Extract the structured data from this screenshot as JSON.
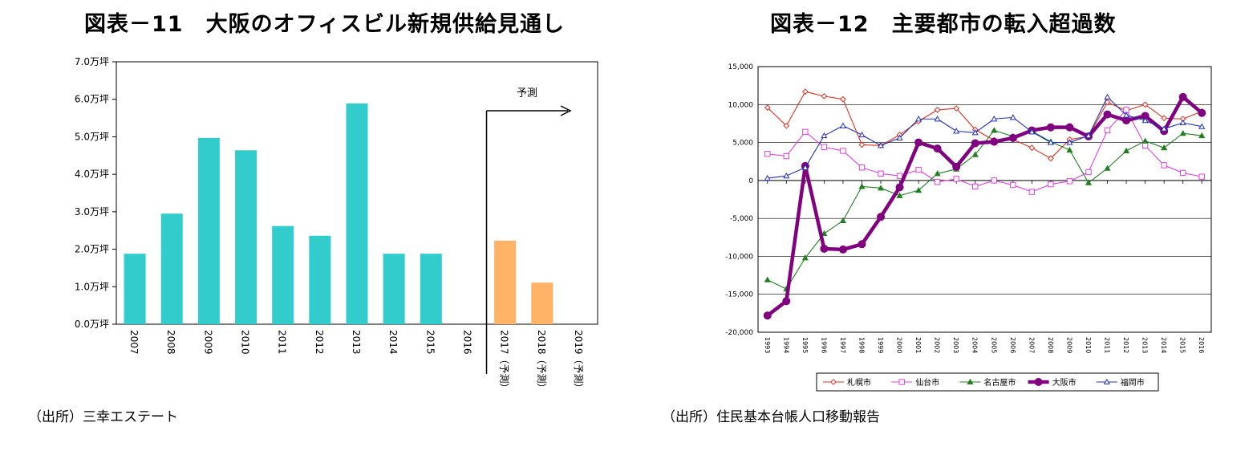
{
  "titles": {
    "left": "図表－11　大阪のオフィスビル新規供給見通し",
    "right": "図表－12　主要都市の転入超過数"
  },
  "sources": {
    "left": "（出所）三幸エステート",
    "right": "（出所）住民基本台帳人口移動報告"
  },
  "colors": {
    "bar_actual": "#33CCCC",
    "bar_forecast": "#FFB366",
    "sapporo": "#E03020",
    "sendai": "#E040E0",
    "nagoya": "#208020",
    "osaka": "#800080",
    "fukuoka": "#2030C0"
  },
  "chart_data": [
    {
      "type": "bar",
      "title": "図表－11　大阪のオフィスビル新規供給見通し",
      "categories": [
        "2007",
        "2008",
        "2009",
        "2010",
        "2011",
        "2012",
        "2013",
        "2014",
        "2015",
        "2016",
        "2017（予測）",
        "2018（予測）",
        "2019（予測）"
      ],
      "values": [
        1.88,
        2.95,
        4.97,
        4.64,
        2.62,
        2.36,
        5.89,
        1.88,
        1.88,
        0,
        2.23,
        1.11,
        0
      ],
      "forecast_from_index": 10,
      "y_tick_labels": [
        "0.0万坪",
        "1.0万坪",
        "2.0万坪",
        "3.0万坪",
        "4.0万坪",
        "5.0万坪",
        "6.0万坪",
        "7.0万坪"
      ],
      "ylim": [
        0,
        7
      ],
      "annotation": "予測",
      "grid": false
    },
    {
      "type": "line",
      "title": "図表－12　主要都市の転入超過数",
      "x": [
        "1993",
        "1994",
        "1995",
        "1996",
        "1997",
        "1998",
        "1999",
        "2000",
        "2001",
        "2002",
        "2003",
        "2004",
        "2005",
        "2006",
        "2007",
        "2008",
        "2009",
        "2010",
        "2011",
        "2012",
        "2013",
        "2014",
        "2015",
        "2016"
      ],
      "y_tick_labels": [
        "-20,000",
        "-15,000",
        "-10,000",
        "-5,000",
        "0",
        "5,000",
        "10,000",
        "15,000"
      ],
      "ylim": [
        -20000,
        15000
      ],
      "grid": true,
      "legend_position": "bottom",
      "series": [
        {
          "name": "札幌市",
          "marker": "diamond",
          "colorKey": "sapporo",
          "values": [
            9600,
            7200,
            11700,
            11100,
            10700,
            4700,
            4600,
            6000,
            7800,
            9300,
            9500,
            6700,
            5300,
            5400,
            4300,
            2900,
            5400,
            5800,
            10300,
            9200,
            10000,
            8200,
            8100,
            9100
          ]
        },
        {
          "name": "仙台市",
          "marker": "square",
          "colorKey": "sendai",
          "values": [
            3500,
            3200,
            6400,
            4400,
            3900,
            1700,
            900,
            600,
            1400,
            -200,
            200,
            -800,
            0,
            -600,
            -1500,
            -500,
            -100,
            1100,
            6600,
            9300,
            4600,
            2000,
            1000,
            500
          ]
        },
        {
          "name": "名古屋市",
          "marker": "triangle-filled",
          "colorKey": "nagoya",
          "values": [
            -13100,
            -14300,
            -10200,
            -7000,
            -5300,
            -800,
            -1000,
            -2000,
            -1300,
            900,
            1500,
            3400,
            6600,
            5800,
            6500,
            5100,
            4000,
            -300,
            1600,
            3900,
            5200,
            4300,
            6200,
            5900
          ]
        },
        {
          "name": "大阪市",
          "marker": "circle-filled",
          "colorKey": "osaka",
          "values": [
            -17800,
            -15900,
            1900,
            -9000,
            -9100,
            -8400,
            -4800,
            -900,
            5000,
            4200,
            1800,
            4900,
            5100,
            5600,
            6600,
            7000,
            7000,
            5800,
            8700,
            7900,
            8500,
            6500,
            11000,
            8900
          ]
        },
        {
          "name": "福岡市",
          "marker": "triangle-open",
          "colorKey": "fukuoka",
          "values": [
            300,
            600,
            1700,
            5900,
            7200,
            6000,
            4600,
            5600,
            8100,
            8100,
            6500,
            6300,
            8100,
            8300,
            6400,
            5000,
            5000,
            5900,
            11000,
            8600,
            7900,
            6800,
            7600,
            7100
          ]
        }
      ]
    }
  ]
}
